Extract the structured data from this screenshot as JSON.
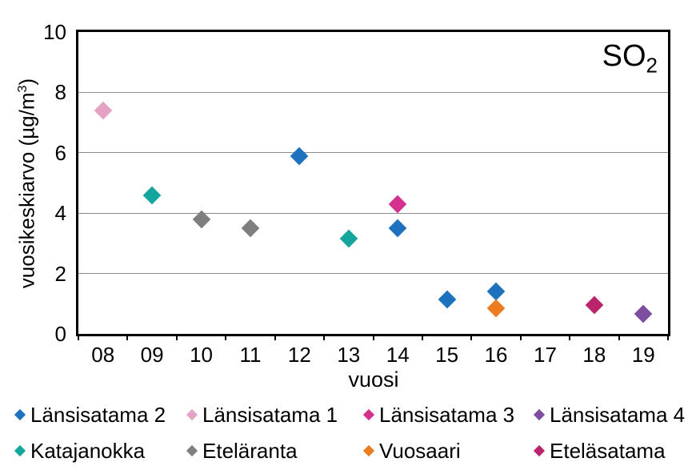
{
  "labels": {
    "y_axis_pre": "vuosikeskiarvo (µg/m",
    "y_axis_sup": "3",
    "y_axis_post": ")",
    "so2_main": "SO",
    "so2_sub": "2"
  },
  "chart_data": {
    "type": "scatter",
    "title": "SO₂",
    "xlabel": "vuosi",
    "ylabel": "vuosikeskiarvo (µg/m³)",
    "categories": [
      "08",
      "09",
      "10",
      "11",
      "12",
      "13",
      "14",
      "15",
      "16",
      "17",
      "18",
      "19"
    ],
    "ylim": [
      0,
      10
    ],
    "yticks": [
      0,
      2,
      4,
      6,
      8,
      10
    ],
    "grid": "horizontal",
    "marker": "diamond",
    "legend_position": "bottom",
    "frame_color": "#000000",
    "gridline_color": "#8c8c8c",
    "series": [
      {
        "name": "Länsisatama 2",
        "color": "#1c72be",
        "points": [
          {
            "x": "12",
            "y": 5.9
          },
          {
            "x": "14",
            "y": 3.5
          },
          {
            "x": "15",
            "y": 1.15
          },
          {
            "x": "16",
            "y": 1.4
          }
        ]
      },
      {
        "name": "Länsisatama 1",
        "color": "#e5a3c3",
        "points": [
          {
            "x": "08",
            "y": 7.4
          }
        ]
      },
      {
        "name": "Länsisatama 3",
        "color": "#d4308e",
        "points": [
          {
            "x": "14",
            "y": 4.3
          }
        ]
      },
      {
        "name": "Länsisatama 4",
        "color": "#7c4da0",
        "points": [
          {
            "x": "19",
            "y": 0.65
          }
        ]
      },
      {
        "name": "Katajanokka",
        "color": "#14a59c",
        "points": [
          {
            "x": "09",
            "y": 4.6
          },
          {
            "x": "13",
            "y": 3.15
          }
        ]
      },
      {
        "name": "Eteläranta",
        "color": "#7f7f7f",
        "points": [
          {
            "x": "10",
            "y": 3.8
          },
          {
            "x": "11",
            "y": 3.5
          }
        ]
      },
      {
        "name": "Vuosaari",
        "color": "#ec7c1e",
        "points": [
          {
            "x": "16",
            "y": 0.85
          }
        ]
      },
      {
        "name": "Eteläsatama",
        "color": "#b9246b",
        "points": [
          {
            "x": "18",
            "y": 0.95
          }
        ]
      }
    ]
  }
}
